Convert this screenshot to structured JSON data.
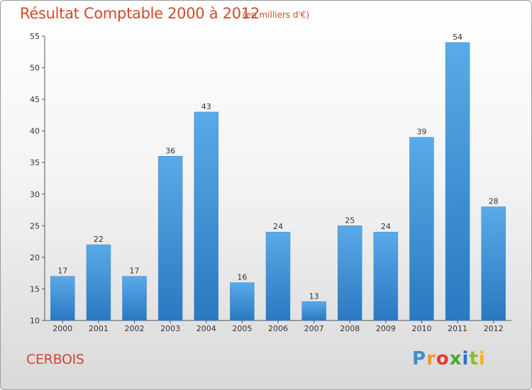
{
  "header": {
    "title": "Résultat Comptable 2000 à 2012",
    "subtitle": "(en milliers d'€)"
  },
  "commune": "CERBOIS",
  "logo": {
    "text": "Proxiti"
  },
  "colors": {
    "accent": "#d04a2c",
    "bar_top": "#5aaae8",
    "bar_bottom": "#2a78c0",
    "axis": "#555555"
  },
  "chart_data": {
    "type": "bar",
    "categories": [
      "2000",
      "2001",
      "2002",
      "2003",
      "2004",
      "2005",
      "2006",
      "2007",
      "2008",
      "2009",
      "2010",
      "2011",
      "2012"
    ],
    "values": [
      17,
      22,
      17,
      36,
      43,
      16,
      24,
      13,
      25,
      24,
      39,
      54,
      28
    ],
    "title": "Résultat Comptable 2000 à 2012",
    "xlabel": "",
    "ylabel": "",
    "ylim": [
      10,
      55
    ],
    "yticks": [
      10,
      15,
      20,
      25,
      30,
      35,
      40,
      45,
      50,
      55
    ],
    "grid": false,
    "legend": "none"
  }
}
